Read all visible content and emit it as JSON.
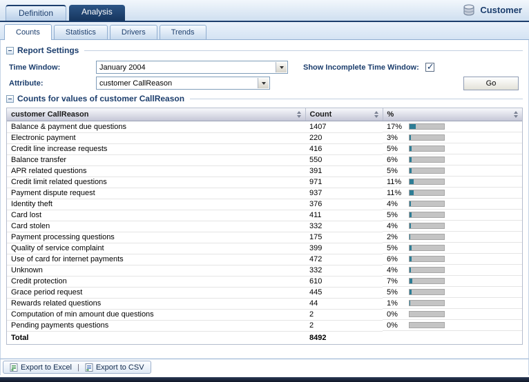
{
  "header": {
    "app_label": "Customer",
    "tabs": [
      {
        "label": "Definition",
        "active": false
      },
      {
        "label": "Analysis",
        "active": true
      }
    ],
    "subtabs": [
      {
        "label": "Counts",
        "active": true
      },
      {
        "label": "Statistics",
        "active": false
      },
      {
        "label": "Drivers",
        "active": false
      },
      {
        "label": "Trends",
        "active": false
      }
    ]
  },
  "report_settings": {
    "title": "Report Settings",
    "time_window_label": "Time Window:",
    "time_window_value": "January 2004",
    "show_incomplete_label": "Show Incomplete Time Window:",
    "show_incomplete_checked": true,
    "attribute_label": "Attribute:",
    "attribute_value": "customer CallReason",
    "go_label": "Go"
  },
  "counts_section": {
    "title": "Counts for values of customer CallReason",
    "columns": [
      "customer CallReason",
      "Count",
      "%"
    ],
    "rows": [
      {
        "reason": "Balance & payment due questions",
        "count": "1407",
        "pct": 17
      },
      {
        "reason": "Electronic payment",
        "count": "220",
        "pct": 3
      },
      {
        "reason": "Credit line increase requests",
        "count": "416",
        "pct": 5
      },
      {
        "reason": "Balance transfer",
        "count": "550",
        "pct": 6
      },
      {
        "reason": "APR related questions",
        "count": "391",
        "pct": 5
      },
      {
        "reason": "Credit limit related questions",
        "count": "971",
        "pct": 11
      },
      {
        "reason": "Payment dispute request",
        "count": "937",
        "pct": 11
      },
      {
        "reason": "Identity theft",
        "count": "376",
        "pct": 4
      },
      {
        "reason": "Card lost",
        "count": "411",
        "pct": 5
      },
      {
        "reason": "Card stolen",
        "count": "332",
        "pct": 4
      },
      {
        "reason": "Payment processing questions",
        "count": "175",
        "pct": 2
      },
      {
        "reason": "Quality of service complaint",
        "count": "399",
        "pct": 5
      },
      {
        "reason": "Use of card for internet payments",
        "count": "472",
        "pct": 6
      },
      {
        "reason": "Unknown",
        "count": "332",
        "pct": 4
      },
      {
        "reason": "Credit protection",
        "count": "610",
        "pct": 7
      },
      {
        "reason": "Grace period request",
        "count": "445",
        "pct": 5
      },
      {
        "reason": "Rewards related questions",
        "count": "44",
        "pct": 1
      },
      {
        "reason": "Computation of min amount due questions",
        "count": "2",
        "pct": 0
      },
      {
        "reason": "Pending payments questions",
        "count": "2",
        "pct": 0
      }
    ],
    "total_label": "Total",
    "total_count": "8492"
  },
  "footer": {
    "export_excel_label": "Export to Excel",
    "separator": "|",
    "export_csv_label": "Export to CSV"
  },
  "colors": {
    "accent_navy": "#1c3e6d",
    "bar_fill": "#2e7d95",
    "bar_bg": "#c4c4c4"
  }
}
